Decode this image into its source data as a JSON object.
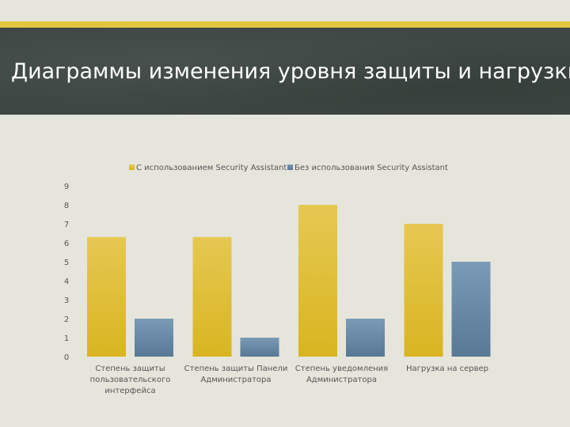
{
  "slide": {
    "title": "Диаграммы изменения уровня защиты и нагрузки"
  },
  "colors": {
    "series_with": "#e0be2a",
    "series_without": "#6a8aa6",
    "stripe": "#e3c53f",
    "banner": "#3e4743"
  },
  "chart_data": {
    "type": "bar",
    "categories": [
      [
        "Степень защиты",
        "пользовательского",
        "интерфейса"
      ],
      [
        "Степень защиты Панели",
        "Администратора"
      ],
      [
        "Степень уведомления",
        "Администратора"
      ],
      [
        "Нагрузка на сервер"
      ]
    ],
    "series": [
      {
        "name": "С использованием Security Assistant",
        "values": [
          6.3,
          6.3,
          8,
          7
        ]
      },
      {
        "name": "Без использования Security Assistant",
        "values": [
          2,
          1,
          2,
          5
        ]
      }
    ],
    "y_ticks": [
      "0",
      "1",
      "2",
      "3",
      "4",
      "5",
      "6",
      "7",
      "8",
      "9"
    ],
    "ylim": [
      0,
      9
    ],
    "legend_position": "top-center",
    "grid": false
  }
}
